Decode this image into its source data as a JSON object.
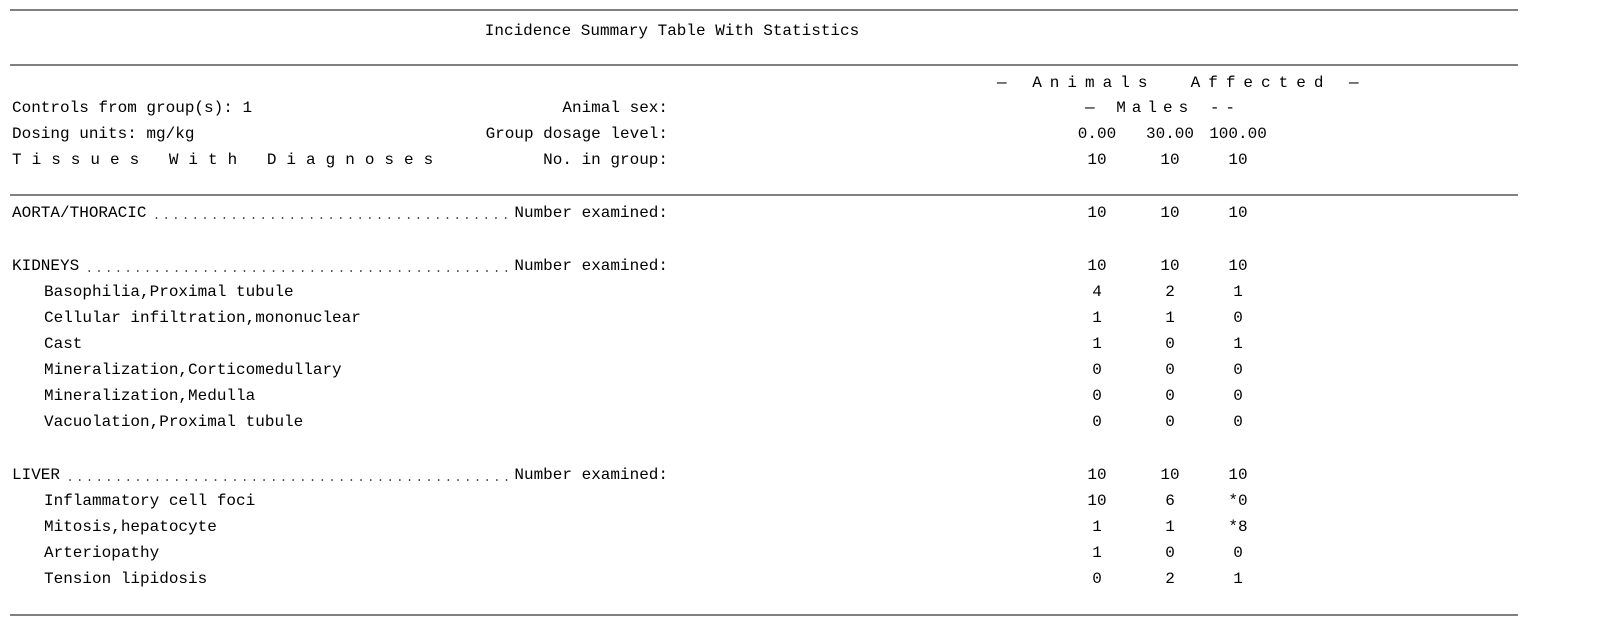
{
  "title": "Incidence Summary Table With Statistics",
  "left": {
    "controls": "Controls from group(s): 1",
    "units": "Dosing units: mg/kg",
    "tissues": "Tissues With Diagnoses"
  },
  "columns": {
    "group_title": "— Animals  Affected —",
    "sex_label": "Animal sex:",
    "sex": "— Males --",
    "dose_label": "Group dosage level:",
    "doses": [
      "0.00",
      "30.00",
      "100.00"
    ],
    "n_label": "No. in group:",
    "n": [
      10,
      10,
      10
    ]
  },
  "sections": [
    {
      "tissue": "AORTA/THORACIC",
      "examined_label": "Number examined:",
      "examined": [
        10,
        10,
        10
      ],
      "rows": []
    },
    {
      "tissue": "KIDNEYS",
      "examined_label": "Number examined:",
      "examined": [
        10,
        10,
        10
      ],
      "rows": [
        {
          "label": "Basophilia,Proximal tubule",
          "values": [
            4,
            2,
            1
          ]
        },
        {
          "label": "Cellular infiltration,mononuclear",
          "values": [
            1,
            1,
            0
          ]
        },
        {
          "label": "Cast",
          "values": [
            1,
            0,
            1
          ]
        },
        {
          "label": "Mineralization,Corticomedullary",
          "values": [
            0,
            0,
            0
          ]
        },
        {
          "label": "Mineralization,Medulla",
          "values": [
            0,
            0,
            0
          ]
        },
        {
          "label": "Vacuolation,Proximal tubule",
          "values": [
            0,
            0,
            0
          ]
        }
      ]
    },
    {
      "tissue": "LIVER",
      "examined_label": "Number examined:",
      "examined": [
        10,
        10,
        10
      ],
      "rows": [
        {
          "label": "Inflammatory cell foci",
          "values": [
            10,
            6,
            "*0"
          ]
        },
        {
          "label": "Mitosis,hepatocyte",
          "values": [
            1,
            1,
            "*8"
          ]
        },
        {
          "label": "Arteriopathy",
          "values": [
            1,
            0,
            0
          ]
        },
        {
          "label": "Tension lipidosis",
          "values": [
            0,
            2,
            1
          ]
        }
      ]
    }
  ]
}
